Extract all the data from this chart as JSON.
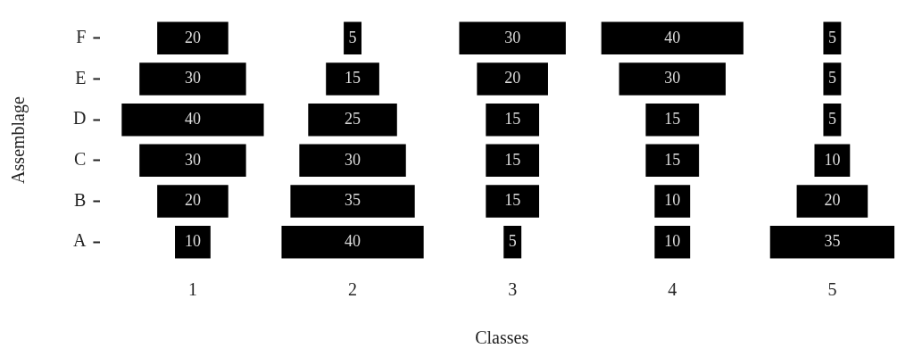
{
  "chart_data": {
    "type": "heatmap",
    "xlabel": "Classes",
    "ylabel": "Assemblage",
    "categories": [
      "1",
      "2",
      "3",
      "4",
      "5"
    ],
    "y_categories": [
      "F",
      "E",
      "D",
      "C",
      "B",
      "A"
    ],
    "cells": [
      [
        20,
        5,
        30,
        40,
        5
      ],
      [
        30,
        15,
        20,
        30,
        5
      ],
      [
        40,
        25,
        15,
        15,
        5
      ],
      [
        30,
        30,
        15,
        15,
        10
      ],
      [
        20,
        35,
        15,
        10,
        20
      ],
      [
        10,
        40,
        5,
        10,
        35
      ]
    ],
    "color": "#000000",
    "data_labels": true
  }
}
